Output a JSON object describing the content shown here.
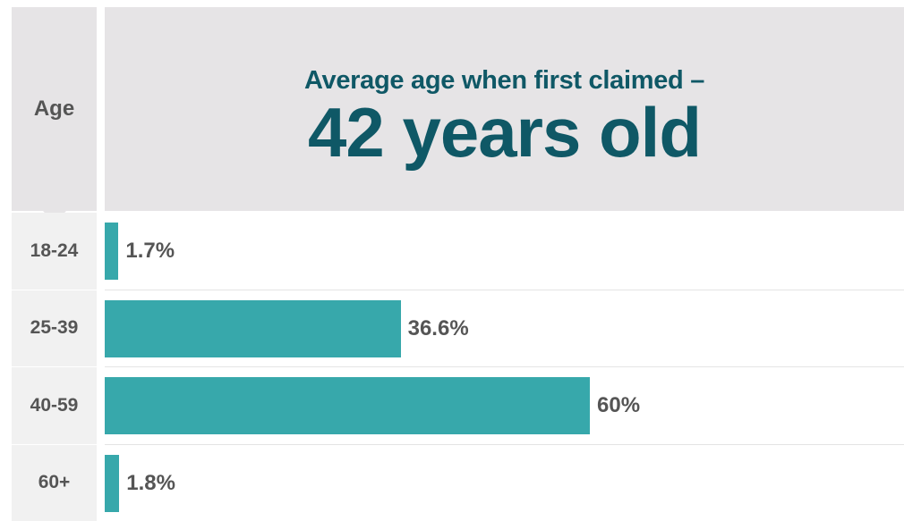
{
  "header": {
    "age_label": "Age",
    "title": "Average age when first claimed –",
    "subtitle": "42 years old"
  },
  "colors": {
    "bar": "#37a8ab",
    "title": "#0f5866",
    "panel": "#e6e4e6"
  },
  "chart_data": {
    "type": "bar",
    "orientation": "horizontal",
    "categories": [
      "18-24",
      "25-39",
      "40-59",
      "60+"
    ],
    "values": [
      1.7,
      36.6,
      60,
      1.8
    ],
    "value_labels": [
      "1.7%",
      "36.6%",
      "60%",
      "1.8%"
    ],
    "unit": "%",
    "xlim": [
      0,
      60
    ],
    "grid": false,
    "legend": "none"
  }
}
